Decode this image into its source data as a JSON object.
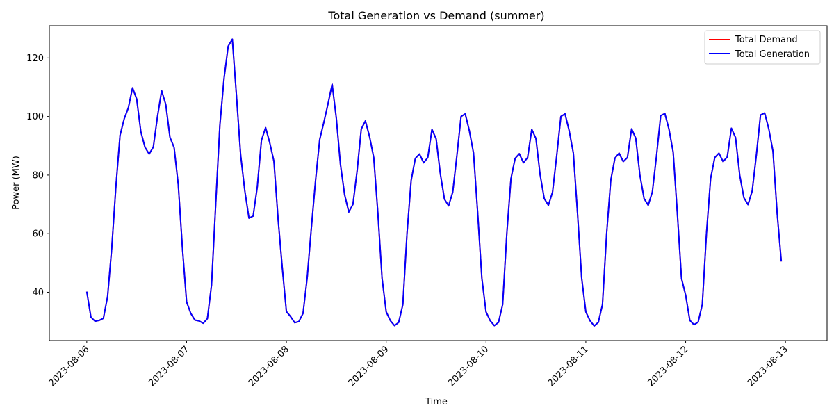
{
  "chart_data": {
    "type": "line",
    "title": "Total Generation vs Demand (summer)",
    "xlabel": "Time",
    "ylabel": "Power (MW)",
    "xlim": [
      "2023-08-05 15:00",
      "2023-08-13 10:00"
    ],
    "ylim": [
      23.5,
      131
    ],
    "x_ticks": [
      "2023-08-06",
      "2023-08-07",
      "2023-08-08",
      "2023-08-09",
      "2023-08-10",
      "2023-08-11",
      "2023-08-12",
      "2023-08-13"
    ],
    "y_ticks": [
      40,
      60,
      80,
      100,
      120
    ],
    "grid": false,
    "legend_position": "top-right",
    "x_start": "2023-08-06 00:00",
    "x_step_hours": 1,
    "series": [
      {
        "name": "Total Demand",
        "color": "#ff0000",
        "values": [
          40.2,
          31.5,
          30.1,
          30.4,
          31.1,
          38.5,
          55.0,
          76.0,
          93.6,
          99.2,
          103.0,
          109.8,
          106.0,
          94.8,
          89.5,
          87.2,
          89.6,
          100.0,
          108.8,
          104.1,
          92.9,
          89.4,
          76.7,
          55.0,
          36.7,
          32.8,
          30.5,
          30.2,
          29.4,
          31.0,
          42.5,
          70.0,
          97.0,
          113.0,
          124.0,
          126.4,
          107.0,
          86.8,
          74.6,
          65.3,
          66.0,
          76.0,
          91.9,
          96.2,
          91.0,
          84.7,
          65.0,
          48.5,
          33.4,
          31.7,
          29.6,
          30.0,
          32.8,
          45.0,
          62.0,
          78.0,
          92.1,
          98.0,
          104.3,
          111.0,
          99.5,
          83.6,
          73.3,
          67.4,
          70.0,
          81.4,
          95.7,
          98.5,
          93.1,
          86.0,
          67.0,
          44.8,
          33.3,
          30.3,
          28.6,
          29.7,
          35.8,
          60.0,
          78.2,
          85.7,
          87.2,
          84.2,
          86.0,
          95.6,
          92.4,
          80.6,
          71.8,
          69.5,
          74.2,
          86.7,
          100.0,
          100.9,
          95.1,
          87.5,
          67.0,
          44.8,
          33.3,
          30.3,
          28.6,
          29.7,
          35.8,
          60.0,
          78.8,
          85.7,
          87.3,
          84.2,
          86.0,
          95.6,
          92.5,
          80.2,
          72.0,
          69.7,
          74.2,
          86.7,
          100.0,
          100.9,
          95.1,
          87.5,
          67.0,
          44.8,
          33.3,
          30.3,
          28.5,
          29.7,
          35.8,
          60.0,
          78.3,
          85.8,
          87.5,
          84.6,
          86.0,
          95.8,
          92.6,
          80.0,
          72.0,
          69.7,
          74.3,
          86.7,
          100.3,
          101.0,
          95.6,
          87.8,
          67.0,
          44.7,
          39.0,
          30.4,
          28.9,
          29.8,
          35.8,
          60.0,
          78.8,
          86.0,
          87.5,
          84.6,
          86.2,
          96.0,
          92.8,
          80.0,
          72.3,
          69.9,
          74.6,
          86.8,
          100.5,
          101.2,
          95.7,
          88.1,
          67.0,
          50.5
        ]
      },
      {
        "name": "Total Generation",
        "color": "#0000ff",
        "values": [
          40.2,
          31.5,
          30.1,
          30.4,
          31.1,
          38.5,
          55.0,
          76.0,
          93.6,
          99.2,
          103.0,
          109.8,
          106.0,
          94.8,
          89.5,
          87.2,
          89.6,
          100.0,
          108.8,
          104.1,
          92.9,
          89.4,
          76.7,
          55.0,
          36.7,
          32.8,
          30.5,
          30.2,
          29.4,
          31.0,
          42.5,
          70.0,
          97.0,
          113.0,
          124.0,
          126.4,
          107.0,
          86.8,
          74.6,
          65.3,
          66.0,
          76.0,
          91.9,
          96.2,
          91.0,
          84.7,
          65.0,
          48.5,
          33.4,
          31.7,
          29.6,
          30.0,
          32.8,
          45.0,
          62.0,
          78.0,
          92.1,
          98.0,
          104.3,
          111.0,
          99.5,
          83.6,
          73.3,
          67.4,
          70.0,
          81.4,
          95.7,
          98.5,
          93.1,
          86.0,
          67.0,
          44.8,
          33.3,
          30.3,
          28.6,
          29.7,
          35.8,
          60.0,
          78.2,
          85.7,
          87.2,
          84.2,
          86.0,
          95.6,
          92.4,
          80.6,
          71.8,
          69.5,
          74.2,
          86.7,
          100.0,
          100.9,
          95.1,
          87.5,
          67.0,
          44.8,
          33.3,
          30.3,
          28.6,
          29.7,
          35.8,
          60.0,
          78.8,
          85.7,
          87.3,
          84.2,
          86.0,
          95.6,
          92.5,
          80.2,
          72.0,
          69.7,
          74.2,
          86.7,
          100.0,
          100.9,
          95.1,
          87.5,
          67.0,
          44.8,
          33.3,
          30.3,
          28.5,
          29.7,
          35.8,
          60.0,
          78.3,
          85.8,
          87.5,
          84.6,
          86.0,
          95.8,
          92.6,
          80.0,
          72.0,
          69.7,
          74.3,
          86.7,
          100.3,
          101.0,
          95.6,
          87.8,
          67.0,
          44.7,
          39.0,
          30.4,
          28.9,
          29.8,
          35.8,
          60.0,
          78.8,
          86.0,
          87.5,
          84.6,
          86.2,
          96.0,
          92.8,
          80.0,
          72.3,
          69.9,
          74.6,
          86.8,
          100.5,
          101.2,
          95.7,
          88.1,
          67.0,
          50.5
        ]
      }
    ]
  }
}
